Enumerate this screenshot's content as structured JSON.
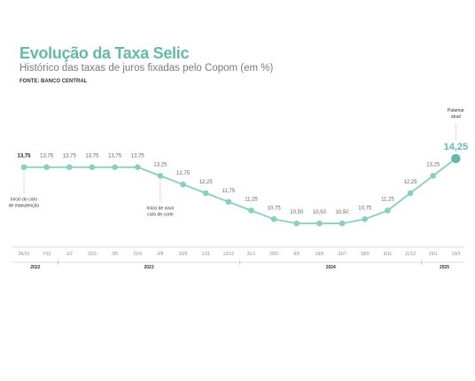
{
  "header": {
    "title": "Evolução da Taxa Selic",
    "subtitle": "Histórico das taxas de juros fixadas pelo Copom  (em %)",
    "source": "FONTE: BANCO CENTRAL"
  },
  "chart_data": {
    "type": "line",
    "x": [
      "26/10",
      "7/12",
      "1/2",
      "22/3",
      "3/5",
      "21/6",
      "2/8",
      "20/9",
      "1/11",
      "13/12",
      "31/1",
      "20/3",
      "8/5",
      "19/6",
      "31/7",
      "18/9",
      "6/11",
      "11/12",
      "29/1",
      "19/3"
    ],
    "values": [
      13.75,
      13.75,
      13.75,
      13.75,
      13.75,
      13.75,
      13.25,
      12.75,
      12.25,
      11.75,
      11.25,
      10.75,
      10.5,
      10.5,
      10.5,
      10.75,
      11.25,
      12.25,
      13.25,
      14.25
    ],
    "value_labels": [
      "13,75",
      "13,75",
      "13,75",
      "13,75",
      "13,75",
      "13,75",
      "13,25",
      "12,75",
      "12,25",
      "11,75",
      "11,25",
      "10,75",
      "10,50",
      "10,50",
      "10,50",
      "10,75",
      "11,25",
      "12,25",
      "13,25",
      "14,25"
    ],
    "years": [
      {
        "label": "2022",
        "from": 0,
        "to": 1
      },
      {
        "label": "2023",
        "from": 2,
        "to": 9
      },
      {
        "label": "2024",
        "from": 10,
        "to": 17
      },
      {
        "label": "2025",
        "from": 18,
        "to": 19
      }
    ],
    "annotations": [
      {
        "index": 0,
        "lines": [
          "Início do ciclo",
          "de manutenção"
        ],
        "position": "below"
      },
      {
        "index": 6,
        "lines": [
          "Início de novo",
          "ciclo de corte"
        ],
        "position": "below"
      },
      {
        "index": 19,
        "lines": [
          "Patamar",
          "atual"
        ],
        "position": "above"
      }
    ],
    "ylim": [
      10.0,
      14.5
    ],
    "line_color": "#86cfc2",
    "marker_color": "#86cfc2",
    "highlight_color": "#63b9ab",
    "grid": false,
    "legend": "none"
  }
}
